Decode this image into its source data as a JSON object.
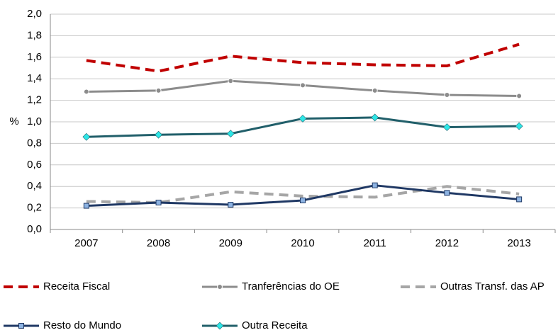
{
  "chart_data": {
    "type": "line",
    "ylabel": "%",
    "categories": [
      "2007",
      "2008",
      "2009",
      "2010",
      "2011",
      "2012",
      "2013"
    ],
    "ylim": [
      0,
      2.0
    ],
    "yticks": [
      {
        "value": 0,
        "label": "0,0"
      },
      {
        "value": 0.2,
        "label": "0,2"
      },
      {
        "value": 0.4,
        "label": "0,4"
      },
      {
        "value": 0.6,
        "label": "0,6"
      },
      {
        "value": 0.8,
        "label": "0,8"
      },
      {
        "value": 1.0,
        "label": "1,0"
      },
      {
        "value": 1.2,
        "label": "1,2"
      },
      {
        "value": 1.4,
        "label": "1,4"
      },
      {
        "value": 1.6,
        "label": "1,6"
      },
      {
        "value": 1.8,
        "label": "1,8"
      },
      {
        "value": 2.0,
        "label": "2,0"
      }
    ],
    "grid": true,
    "legend": "bottom",
    "series": [
      {
        "name": "Receita Fiscal",
        "color": "#c00000",
        "dash": true,
        "marker": "none",
        "values": [
          1.57,
          1.47,
          1.61,
          1.55,
          1.53,
          1.52,
          1.72
        ]
      },
      {
        "name": "Tranferências do OE",
        "color": "#8c8c8c",
        "dash": false,
        "marker": "circle",
        "values": [
          1.28,
          1.29,
          1.38,
          1.34,
          1.29,
          1.25,
          1.24
        ]
      },
      {
        "name": "Outras Transf. das AP",
        "color": "#a6a6a6",
        "dash": true,
        "marker": "none",
        "values": [
          0.26,
          0.25,
          0.35,
          0.31,
          0.3,
          0.4,
          0.33
        ]
      },
      {
        "name": "Resto do Mundo",
        "color": "#1f3864",
        "dash": false,
        "marker": "square",
        "values": [
          0.22,
          0.25,
          0.23,
          0.27,
          0.41,
          0.34,
          0.28
        ]
      },
      {
        "name": "Outra Receita",
        "color": "#215f6a",
        "dash": false,
        "marker": "diamond",
        "values": [
          0.86,
          0.88,
          0.89,
          1.03,
          1.04,
          0.95,
          0.96
        ]
      }
    ]
  }
}
